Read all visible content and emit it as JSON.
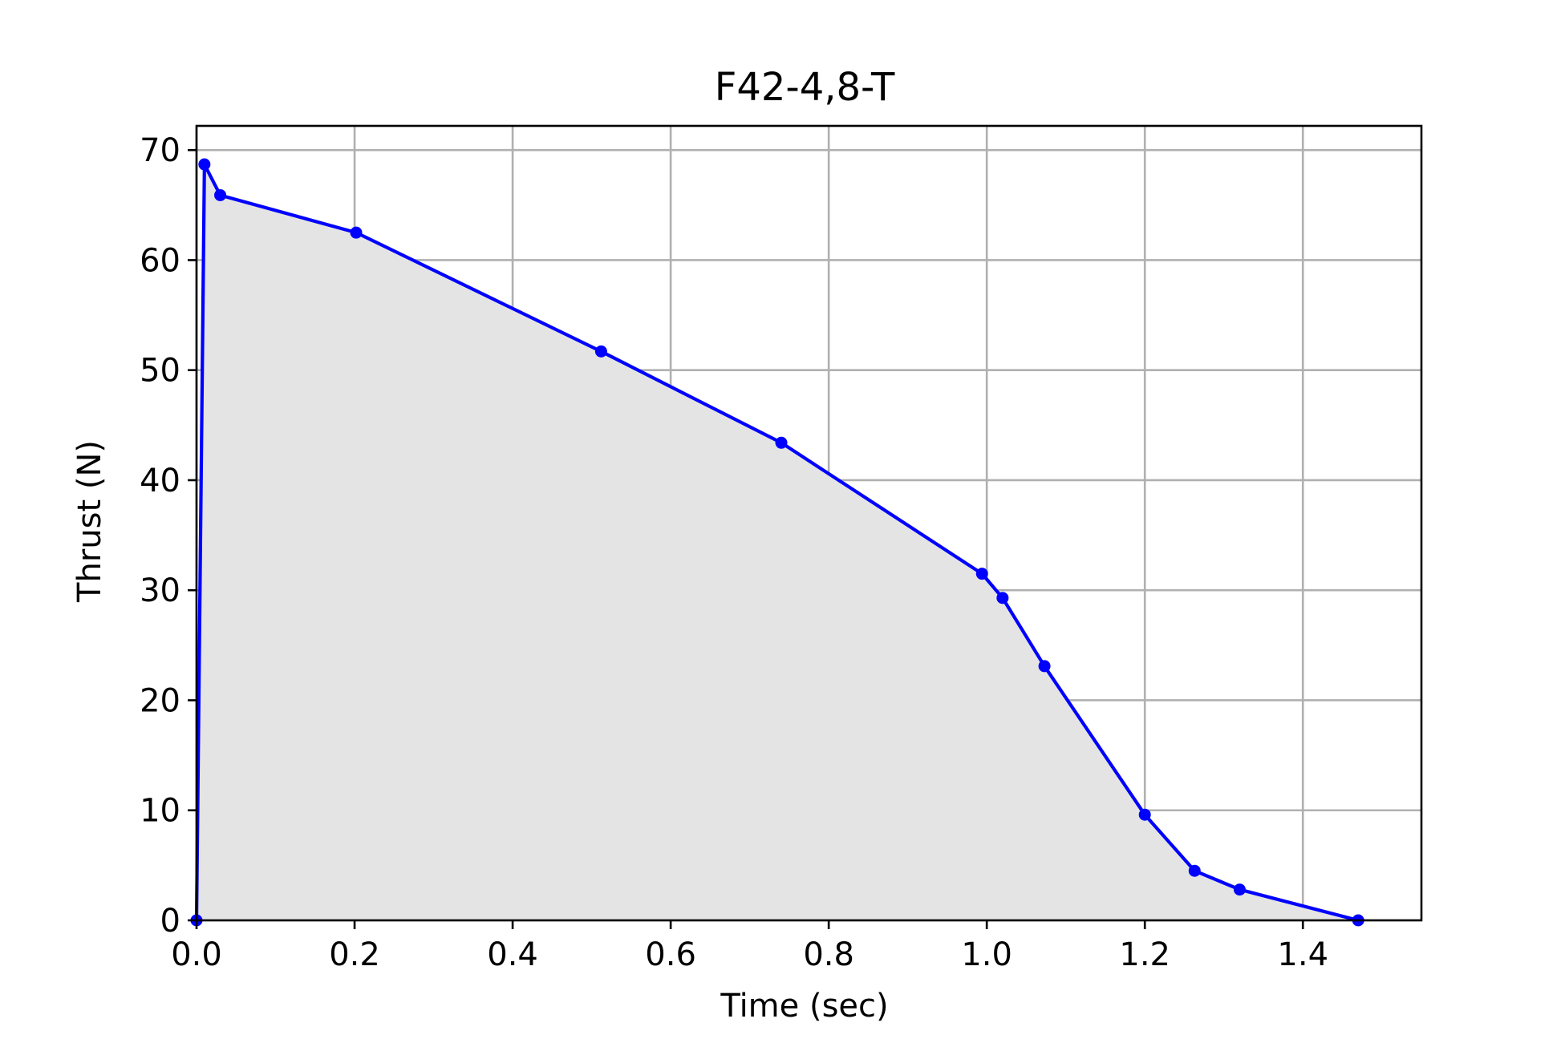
{
  "chart_data": {
    "type": "area",
    "title": "F42-4,8-T",
    "xlabel": "Time (sec)",
    "ylabel": "Thrust (N)",
    "xlim": [
      0.0,
      1.55
    ],
    "ylim": [
      0,
      72.2
    ],
    "xticks": [
      0.0,
      0.2,
      0.4,
      0.6,
      0.8,
      1.0,
      1.2,
      1.4
    ],
    "xtick_labels": [
      "0.0",
      "0.2",
      "0.4",
      "0.6",
      "0.8",
      "1.0",
      "1.2",
      "1.4"
    ],
    "yticks": [
      0,
      10,
      20,
      30,
      40,
      50,
      60,
      70
    ],
    "ytick_labels": [
      "0",
      "10",
      "20",
      "30",
      "40",
      "50",
      "60",
      "70"
    ],
    "grid": true,
    "series": [
      {
        "x": [
          0.0,
          0.01,
          0.03,
          0.202,
          0.512,
          0.74,
          0.994,
          1.02,
          1.073,
          1.2,
          1.263,
          1.32,
          1.47
        ],
        "y": [
          0.0,
          68.7,
          65.9,
          62.5,
          51.7,
          43.4,
          31.5,
          29.3,
          23.1,
          9.6,
          4.5,
          2.8,
          0.0
        ]
      }
    ],
    "colors": {
      "line": "#0000ff",
      "fill": "#e4e4e4",
      "grid": "#b0b0b0",
      "axes": "#000000"
    }
  }
}
